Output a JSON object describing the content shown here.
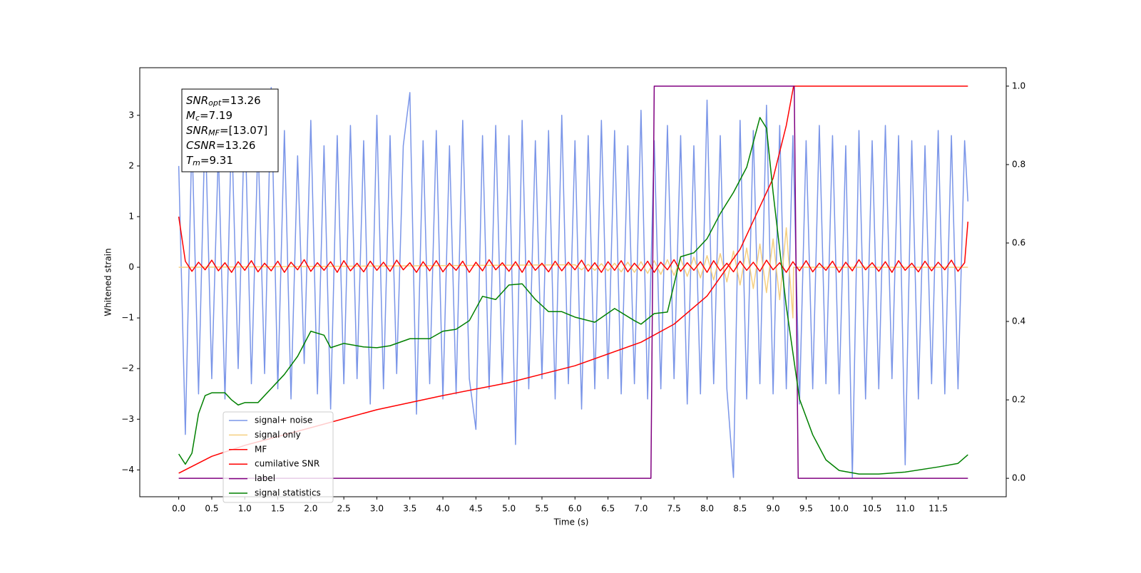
{
  "chart_data": {
    "type": "line",
    "xlabel": "Time (s)",
    "ylabel": "Whitened strain",
    "xlim": [
      -0.59,
      12.53
    ],
    "ylim": [
      -4.53,
      3.94
    ],
    "y2lim": [
      -0.047,
      1.047
    ],
    "xticks": [
      {
        "value": 0,
        "label": "0.0"
      },
      0.5,
      {
        "value": 1,
        "label": "1.0"
      },
      1.5,
      {
        "value": 2,
        "label": "2.0"
      },
      2.5,
      {
        "value": 3,
        "label": "3.0"
      },
      3.5,
      {
        "value": 4,
        "label": "4.0"
      },
      4.5,
      {
        "value": 5,
        "label": "5.0"
      },
      5.5,
      {
        "value": 6,
        "label": "6.0"
      },
      6.5,
      {
        "value": 7,
        "label": "7.0"
      },
      7.5,
      {
        "value": 8,
        "label": "8.0"
      },
      8.5,
      {
        "value": 9,
        "label": "9.0"
      },
      9.5,
      {
        "value": 10,
        "label": "10.0"
      },
      10.5,
      {
        "value": 11,
        "label": "11.0"
      },
      11.5
    ],
    "yticks": [
      {
        "value": -4,
        "label": "−4"
      },
      {
        "value": -3,
        "label": "−3"
      },
      {
        "value": -2,
        "label": "−2"
      },
      {
        "value": -1,
        "label": "−1"
      },
      0,
      1,
      2,
      3
    ],
    "y2ticks": [
      {
        "value": 0,
        "label": "0.0"
      },
      0.2,
      0.4,
      0.6,
      0.8,
      {
        "value": 1,
        "label": "1.0"
      }
    ],
    "legend": "lower left",
    "annotations": [
      {
        "symbol": "SNR",
        "subscript": "opt",
        "text": "=13.26"
      },
      {
        "symbol": "M",
        "subscript": "c",
        "text": "=7.19"
      },
      {
        "symbol": "SNR",
        "subscript": "MF",
        "text": "=[13.07]"
      },
      {
        "symbol": "CSNR",
        "text": "=13.26"
      },
      {
        "symbol": "T",
        "subscript": "m",
        "text": "=9.31"
      }
    ],
    "x": [
      0.0,
      0.1,
      0.2,
      0.3,
      0.4,
      0.5,
      0.6,
      0.7,
      0.8,
      0.9,
      1.0,
      1.1,
      1.2,
      1.3,
      1.4,
      1.5,
      1.6,
      1.7,
      1.8,
      1.9,
      2.0,
      2.1,
      2.2,
      2.3,
      2.4,
      2.5,
      2.6,
      2.7,
      2.8,
      2.9,
      3.0,
      3.1,
      3.2,
      3.3,
      3.4,
      3.5,
      3.6,
      3.7,
      3.8,
      3.9,
      4.0,
      4.1,
      4.2,
      4.3,
      4.4,
      4.5,
      4.6,
      4.7,
      4.8,
      4.9,
      5.0,
      5.1,
      5.2,
      5.3,
      5.4,
      5.5,
      5.6,
      5.7,
      5.8,
      5.9,
      6.0,
      6.1,
      6.2,
      6.3,
      6.4,
      6.5,
      6.6,
      6.7,
      6.8,
      6.9,
      7.0,
      7.1,
      7.2,
      7.3,
      7.4,
      7.5,
      7.6,
      7.7,
      7.8,
      7.9,
      8.0,
      8.1,
      8.2,
      8.3,
      8.4,
      8.5,
      8.6,
      8.7,
      8.8,
      8.9,
      9.0,
      9.1,
      9.2,
      9.3,
      9.4,
      9.5,
      9.6,
      9.7,
      9.8,
      9.9,
      10.0,
      10.1,
      10.2,
      10.3,
      10.4,
      10.5,
      10.6,
      10.7,
      10.8,
      10.9,
      11.0,
      11.1,
      11.2,
      11.3,
      11.4,
      11.5,
      11.6,
      11.7,
      11.8,
      11.9,
      11.95
    ],
    "series": [
      {
        "name": "signal+ noise",
        "color": "#7a95e8",
        "values": [
          2.0,
          -3.3,
          2.6,
          -2.5,
          2.9,
          -2.2,
          2.3,
          -2.6,
          2.8,
          -2.0,
          3.1,
          -2.3,
          2.5,
          -2.1,
          3.55,
          -2.4,
          2.7,
          -2.6,
          2.2,
          -1.9,
          2.9,
          -2.5,
          2.4,
          -2.8,
          2.6,
          -2.3,
          2.8,
          -2.2,
          2.5,
          -2.7,
          3.0,
          -2.4,
          2.6,
          -2.1,
          2.4,
          3.45,
          -2.9,
          2.5,
          -2.3,
          2.7,
          -2.6,
          2.4,
          -2.5,
          2.9,
          -2.2,
          -3.2,
          2.6,
          -2.4,
          2.8,
          -2.3,
          2.6,
          -3.5,
          2.9,
          -2.4,
          2.5,
          -2.2,
          2.7,
          -2.6,
          3.0,
          -2.3,
          2.5,
          -2.8,
          2.6,
          -2.4,
          2.9,
          -2.2,
          2.7,
          -2.5,
          2.4,
          -2.3,
          3.1,
          -2.6,
          2.5,
          -2.4,
          2.8,
          -2.2,
          2.6,
          -2.7,
          2.4,
          -2.5,
          3.3,
          -2.3,
          2.6,
          -2.4,
          -4.15,
          2.9,
          -2.6,
          2.7,
          -2.3,
          3.2,
          -2.5,
          2.8,
          -2.4,
          2.6,
          -2.7,
          2.5,
          -2.4,
          2.8,
          -2.3,
          2.6,
          -2.5,
          2.4,
          -4.15,
          2.7,
          -2.6,
          2.5,
          -2.4,
          2.8,
          -2.2,
          2.6,
          -3.9,
          2.5,
          -2.6,
          2.4,
          -2.3,
          2.7,
          -2.5,
          2.6,
          -2.4,
          2.5,
          1.3
        ]
      },
      {
        "name": "signal only",
        "color": "#f5cf80",
        "x": [
          0.0,
          6.0,
          6.1,
          6.2,
          6.3,
          6.4,
          6.5,
          6.6,
          6.7,
          6.8,
          6.9,
          7.0,
          7.1,
          7.2,
          7.3,
          7.4,
          7.5,
          7.6,
          7.7,
          7.8,
          7.9,
          8.0,
          8.1,
          8.2,
          8.3,
          8.4,
          8.5,
          8.6,
          8.7,
          8.8,
          8.9,
          9.0,
          9.1,
          9.2,
          9.3,
          9.31,
          11.95
        ],
        "values": [
          0,
          0.05,
          -0.05,
          0.06,
          -0.06,
          0.07,
          -0.07,
          0.08,
          -0.09,
          0.1,
          -0.1,
          0.11,
          -0.12,
          0.13,
          -0.14,
          0.15,
          -0.16,
          0.17,
          -0.18,
          0.2,
          -0.21,
          0.23,
          -0.25,
          0.27,
          -0.29,
          0.32,
          -0.35,
          0.38,
          -0.42,
          0.46,
          -0.5,
          0.56,
          -0.64,
          0.78,
          -1.0,
          0,
          0
        ]
      },
      {
        "name": "MF",
        "color": "#ff0000",
        "values": [
          1.0,
          0.12,
          -0.08,
          0.1,
          -0.05,
          0.14,
          -0.07,
          0.09,
          -0.1,
          0.11,
          -0.06,
          0.13,
          -0.09,
          0.08,
          -0.07,
          0.12,
          -0.1,
          0.1,
          -0.05,
          0.15,
          -0.08,
          0.09,
          -0.06,
          0.11,
          -0.1,
          0.13,
          -0.07,
          0.08,
          -0.09,
          0.12,
          -0.06,
          0.1,
          -0.08,
          0.14,
          -0.05,
          0.09,
          -0.1,
          0.11,
          -0.07,
          0.13,
          -0.09,
          0.08,
          -0.06,
          0.12,
          -0.1,
          0.1,
          -0.07,
          0.15,
          -0.05,
          0.09,
          -0.08,
          0.11,
          -0.1,
          0.13,
          -0.06,
          0.08,
          -0.09,
          0.12,
          -0.07,
          0.1,
          -0.05,
          0.14,
          -0.08,
          0.09,
          -0.1,
          0.11,
          -0.06,
          0.13,
          -0.09,
          0.08,
          -0.07,
          0.12,
          -0.1,
          0.1,
          -0.05,
          0.15,
          -0.08,
          0.09,
          -0.06,
          0.11,
          -0.1,
          0.13,
          -0.07,
          0.08,
          -0.09,
          0.12,
          -0.06,
          0.1,
          -0.08,
          0.14,
          -0.05,
          0.09,
          -0.1,
          0.11,
          -0.07,
          0.13,
          -0.09,
          0.08,
          -0.06,
          0.12,
          -0.1,
          0.1,
          -0.07,
          0.15,
          -0.05,
          0.09,
          -0.08,
          0.11,
          -0.1,
          0.13,
          -0.06,
          0.08,
          -0.09,
          0.12,
          -0.07,
          0.1,
          -0.05,
          0.14,
          -0.08,
          0.09,
          0.9
        ]
      },
      {
        "name": "cumilative SNR",
        "color": "#ff0000",
        "axis": "y2",
        "x": [
          0.0,
          0.5,
          1.0,
          2.0,
          3.0,
          4.0,
          5.0,
          6.0,
          7.0,
          7.5,
          8.0,
          8.5,
          9.0,
          9.2,
          9.31,
          11.95
        ],
        "values": [
          0.013,
          0.056,
          0.084,
          0.129,
          0.175,
          0.211,
          0.244,
          0.287,
          0.347,
          0.393,
          0.465,
          0.584,
          0.765,
          0.9,
          1.0,
          1.0
        ]
      },
      {
        "name": "label",
        "color": "#800080",
        "axis": "y2",
        "x": [
          0.0,
          7.15,
          7.2,
          9.32,
          9.38,
          11.95
        ],
        "values": [
          0,
          0,
          1,
          1,
          0,
          0
        ]
      },
      {
        "name": "signal statistics",
        "color": "#008000",
        "axis": "y2",
        "x": [
          0.0,
          0.1,
          0.2,
          0.3,
          0.4,
          0.5,
          0.7,
          0.8,
          0.9,
          1.0,
          1.2,
          1.4,
          1.6,
          1.8,
          2.0,
          2.2,
          2.3,
          2.5,
          2.8,
          3.0,
          3.2,
          3.5,
          3.8,
          4.0,
          4.2,
          4.4,
          4.6,
          4.8,
          5.0,
          5.2,
          5.4,
          5.6,
          5.8,
          6.0,
          6.3,
          6.6,
          6.9,
          7.0,
          7.2,
          7.4,
          7.6,
          7.8,
          8.0,
          8.2,
          8.4,
          8.6,
          8.8,
          8.9,
          9.0,
          9.2,
          9.4,
          9.6,
          9.8,
          10.0,
          10.3,
          10.6,
          11.0,
          11.5,
          11.8,
          11.95
        ],
        "values": [
          0.062,
          0.036,
          0.064,
          0.165,
          0.211,
          0.218,
          0.218,
          0.2,
          0.187,
          0.193,
          0.193,
          0.229,
          0.265,
          0.311,
          0.375,
          0.365,
          0.333,
          0.344,
          0.335,
          0.333,
          0.338,
          0.356,
          0.356,
          0.375,
          0.38,
          0.402,
          0.464,
          0.456,
          0.493,
          0.496,
          0.456,
          0.425,
          0.425,
          0.411,
          0.398,
          0.433,
          0.402,
          0.393,
          0.42,
          0.424,
          0.565,
          0.575,
          0.611,
          0.675,
          0.729,
          0.793,
          0.92,
          0.893,
          0.729,
          0.438,
          0.202,
          0.111,
          0.047,
          0.02,
          0.011,
          0.011,
          0.016,
          0.029,
          0.038,
          0.06
        ]
      }
    ]
  }
}
